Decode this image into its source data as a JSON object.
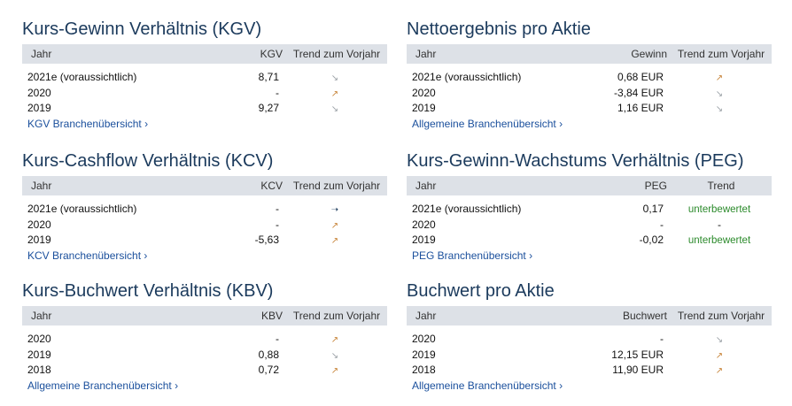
{
  "kgv": {
    "title": "Kurs-Gewinn Verhältnis (KGV)",
    "headers": [
      "Jahr",
      "KGV",
      "Trend zum Vorjahr"
    ],
    "rows": [
      {
        "year": "2021e (voraussichtlich)",
        "value": "8,71",
        "trend": "↘",
        "trend_type": "down"
      },
      {
        "year": "2020",
        "value": "-",
        "trend": "↗",
        "trend_type": "up"
      },
      {
        "year": "2019",
        "value": "9,27",
        "trend": "↘",
        "trend_type": "down"
      }
    ],
    "link": "KGV Branchenübersicht ›"
  },
  "netto": {
    "title": "Nettoergebnis pro Aktie",
    "headers": [
      "Jahr",
      "Gewinn",
      "Trend zum Vorjahr"
    ],
    "rows": [
      {
        "year": "2021e (voraussichtlich)",
        "value": "0,68 EUR",
        "trend": "↗",
        "trend_type": "up"
      },
      {
        "year": "2020",
        "value": "-3,84 EUR",
        "trend": "↘",
        "trend_type": "down"
      },
      {
        "year": "2019",
        "value": "1,16 EUR",
        "trend": "↘",
        "trend_type": "down"
      }
    ],
    "link": "Allgemeine Branchenübersicht ›"
  },
  "kcv": {
    "title": "Kurs-Cashflow Verhältnis (KCV)",
    "headers": [
      "Jahr",
      "KCV",
      "Trend zum Vorjahr"
    ],
    "rows": [
      {
        "year": "2021e (voraussichtlich)",
        "value": "-",
        "trend": "➝",
        "trend_type": "flat"
      },
      {
        "year": "2020",
        "value": "-",
        "trend": "↗",
        "trend_type": "up"
      },
      {
        "year": "2019",
        "value": "-5,63",
        "trend": "↗",
        "trend_type": "up"
      }
    ],
    "link": "KCV Branchenübersicht ›"
  },
  "peg": {
    "title": "Kurs-Gewinn-Wachstums Verhältnis (PEG)",
    "headers": [
      "Jahr",
      "PEG",
      "Trend"
    ],
    "rows": [
      {
        "year": "2021e (voraussichtlich)",
        "value": "0,17",
        "trend": "unterbewertet",
        "trend_type": "text"
      },
      {
        "year": "2020",
        "value": "-",
        "trend": "-",
        "trend_type": "plain"
      },
      {
        "year": "2019",
        "value": "-0,02",
        "trend": "unterbewertet",
        "trend_type": "text"
      }
    ],
    "link": "PEG Branchenübersicht ›"
  },
  "kbv": {
    "title": "Kurs-Buchwert Verhältnis (KBV)",
    "headers": [
      "Jahr",
      "KBV",
      "Trend zum Vorjahr"
    ],
    "rows": [
      {
        "year": "2020",
        "value": "-",
        "trend": "↗",
        "trend_type": "up"
      },
      {
        "year": "2019",
        "value": "0,88",
        "trend": "↘",
        "trend_type": "down"
      },
      {
        "year": "2018",
        "value": "0,72",
        "trend": "↗",
        "trend_type": "up"
      }
    ],
    "link": "Allgemeine Branchenübersicht ›"
  },
  "buchwert": {
    "title": "Buchwert pro Aktie",
    "headers": [
      "Jahr",
      "Buchwert",
      "Trend zum Vorjahr"
    ],
    "rows": [
      {
        "year": "2020",
        "value": "-",
        "trend": "↘",
        "trend_type": "down"
      },
      {
        "year": "2019",
        "value": "12,15 EUR",
        "trend": "↗",
        "trend_type": "up"
      },
      {
        "year": "2018",
        "value": "11,90 EUR",
        "trend": "↗",
        "trend_type": "up"
      }
    ],
    "link": "Allgemeine Branchenübersicht ›"
  },
  "colors": {
    "title": "#1b3a5c",
    "header_bg": "#dde1e7",
    "link": "#1a4f9c",
    "trend_up": "#c8863c",
    "trend_down": "#9aa0a6",
    "undervalued": "#2b8a2b"
  }
}
